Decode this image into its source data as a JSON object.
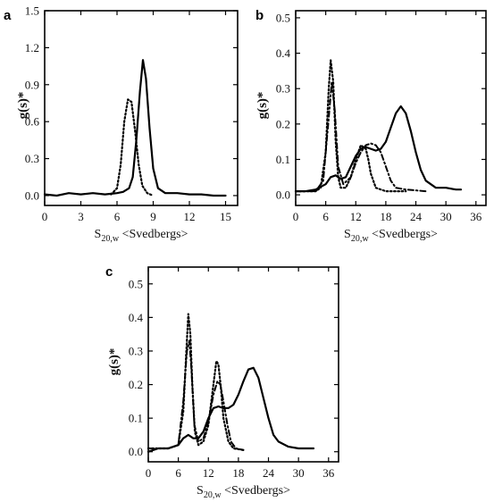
{
  "figure": {
    "panel_letters": [
      "a",
      "b",
      "c"
    ]
  },
  "chart_data": [
    {
      "type": "line",
      "panel": "a",
      "ylabel": "g(s)*",
      "xlabel": {
        "main": "S",
        "sub": "20,w",
        "rest": " <Svedbergs>"
      },
      "xlim": [
        0,
        16
      ],
      "ylim": [
        -0.08,
        1.5
      ],
      "x_ticks": [
        0,
        3,
        6,
        9,
        12,
        15
      ],
      "y_ticks": [
        0.0,
        0.3,
        0.6,
        0.9,
        1.2,
        1.5
      ],
      "y_tick_labels": [
        "0.0",
        "0.3",
        "0.6",
        "0.9",
        "1.2",
        "1.5"
      ],
      "series": [
        {
          "style": "solid",
          "points": [
            [
              0.0,
              0.01
            ],
            [
              1.0,
              0.0
            ],
            [
              2.0,
              0.02
            ],
            [
              3.0,
              0.01
            ],
            [
              4.0,
              0.02
            ],
            [
              5.0,
              0.01
            ],
            [
              6.0,
              0.02
            ],
            [
              6.5,
              0.03
            ],
            [
              7.0,
              0.06
            ],
            [
              7.3,
              0.15
            ],
            [
              7.6,
              0.45
            ],
            [
              7.9,
              0.85
            ],
            [
              8.15,
              1.1
            ],
            [
              8.4,
              0.95
            ],
            [
              8.7,
              0.55
            ],
            [
              9.0,
              0.22
            ],
            [
              9.4,
              0.06
            ],
            [
              10.0,
              0.02
            ],
            [
              11.0,
              0.02
            ],
            [
              12.0,
              0.01
            ],
            [
              13.0,
              0.01
            ],
            [
              14.0,
              0.0
            ],
            [
              15.0,
              0.0
            ]
          ]
        },
        {
          "style": "dotted",
          "points": [
            [
              5.5,
              0.01
            ],
            [
              6.0,
              0.06
            ],
            [
              6.3,
              0.25
            ],
            [
              6.6,
              0.6
            ],
            [
              6.9,
              0.78
            ],
            [
              7.2,
              0.76
            ],
            [
              7.5,
              0.52
            ],
            [
              7.8,
              0.25
            ],
            [
              8.1,
              0.08
            ],
            [
              8.5,
              0.02
            ],
            [
              9.0,
              0.0
            ]
          ]
        }
      ]
    },
    {
      "type": "line",
      "panel": "b",
      "ylabel": "g(s)*",
      "xlabel": {
        "main": "S",
        "sub": "20,w",
        "rest": " <Svedbergs>"
      },
      "xlim": [
        0,
        38
      ],
      "ylim": [
        -0.03,
        0.52
      ],
      "x_ticks": [
        0,
        6,
        12,
        18,
        24,
        30,
        36
      ],
      "y_ticks": [
        0.0,
        0.1,
        0.2,
        0.3,
        0.4,
        0.5
      ],
      "y_tick_labels": [
        "0.0",
        "0.1",
        "0.2",
        "0.3",
        "0.4",
        "0.5"
      ],
      "series": [
        {
          "style": "solid",
          "points": [
            [
              0,
              0.01
            ],
            [
              2,
              0.01
            ],
            [
              4,
              0.015
            ],
            [
              6,
              0.03
            ],
            [
              7,
              0.05
            ],
            [
              8,
              0.055
            ],
            [
              9,
              0.045
            ],
            [
              10,
              0.05
            ],
            [
              11,
              0.08
            ],
            [
              12,
              0.11
            ],
            [
              13,
              0.13
            ],
            [
              14,
              0.135
            ],
            [
              15,
              0.13
            ],
            [
              16,
              0.125
            ],
            [
              17,
              0.13
            ],
            [
              18,
              0.15
            ],
            [
              19,
              0.19
            ],
            [
              20,
              0.23
            ],
            [
              21,
              0.25
            ],
            [
              22,
              0.23
            ],
            [
              23,
              0.18
            ],
            [
              24,
              0.12
            ],
            [
              25,
              0.07
            ],
            [
              26,
              0.04
            ],
            [
              28,
              0.02
            ],
            [
              30,
              0.02
            ],
            [
              32,
              0.015
            ],
            [
              33,
              0.015
            ]
          ]
        },
        {
          "style": "dotted",
          "points": [
            [
              0,
              0.01
            ],
            [
              4,
              0.01
            ],
            [
              5,
              0.02
            ],
            [
              6,
              0.12
            ],
            [
              6.6,
              0.3
            ],
            [
              7,
              0.38
            ],
            [
              7.5,
              0.32
            ],
            [
              8,
              0.15
            ],
            [
              8.5,
              0.05
            ],
            [
              9,
              0.02
            ],
            [
              10,
              0.02
            ],
            [
              11,
              0.05
            ],
            [
              12,
              0.1
            ],
            [
              13,
              0.14
            ],
            [
              14,
              0.13
            ],
            [
              14.5,
              0.1
            ],
            [
              15,
              0.06
            ],
            [
              16,
              0.02
            ],
            [
              18,
              0.01
            ],
            [
              22,
              0.01
            ]
          ]
        },
        {
          "style": "dashdot",
          "points": [
            [
              0,
              0.01
            ],
            [
              4,
              0.01
            ],
            [
              5.5,
              0.04
            ],
            [
              6.5,
              0.2
            ],
            [
              7.2,
              0.32
            ],
            [
              7.8,
              0.24
            ],
            [
              8.5,
              0.08
            ],
            [
              9.5,
              0.03
            ],
            [
              11,
              0.05
            ],
            [
              12,
              0.09
            ],
            [
              13,
              0.12
            ],
            [
              14,
              0.14
            ],
            [
              15,
              0.145
            ],
            [
              16,
              0.14
            ],
            [
              17,
              0.12
            ],
            [
              18,
              0.08
            ],
            [
              19,
              0.04
            ],
            [
              20,
              0.02
            ],
            [
              22,
              0.015
            ],
            [
              26,
              0.01
            ]
          ]
        }
      ]
    },
    {
      "type": "line",
      "panel": "c",
      "ylabel": "g(s)*",
      "xlabel": {
        "main": "S",
        "sub": "20,w",
        "rest": " <Svedbergs>"
      },
      "xlim": [
        0,
        38
      ],
      "ylim": [
        -0.03,
        0.55
      ],
      "x_ticks": [
        0,
        6,
        12,
        18,
        24,
        30,
        36
      ],
      "y_ticks": [
        0.0,
        0.1,
        0.2,
        0.3,
        0.4,
        0.5
      ],
      "y_tick_labels": [
        "0.0",
        "0.1",
        "0.2",
        "0.3",
        "0.4",
        "0.5"
      ],
      "series": [
        {
          "style": "solid",
          "points": [
            [
              0,
              0.0
            ],
            [
              2,
              0.01
            ],
            [
              4,
              0.01
            ],
            [
              6,
              0.02
            ],
            [
              7,
              0.04
            ],
            [
              8,
              0.05
            ],
            [
              9,
              0.04
            ],
            [
              10,
              0.04
            ],
            [
              11,
              0.06
            ],
            [
              12,
              0.1
            ],
            [
              13,
              0.13
            ],
            [
              14,
              0.135
            ],
            [
              15,
              0.13
            ],
            [
              16,
              0.13
            ],
            [
              17,
              0.14
            ],
            [
              18,
              0.17
            ],
            [
              19,
              0.21
            ],
            [
              20,
              0.245
            ],
            [
              21,
              0.25
            ],
            [
              22,
              0.22
            ],
            [
              23,
              0.16
            ],
            [
              24,
              0.1
            ],
            [
              25,
              0.05
            ],
            [
              26,
              0.03
            ],
            [
              28,
              0.015
            ],
            [
              30,
              0.01
            ],
            [
              33,
              0.01
            ]
          ]
        },
        {
          "style": "dotted",
          "points": [
            [
              0,
              0.01
            ],
            [
              4,
              0.01
            ],
            [
              6,
              0.02
            ],
            [
              7,
              0.12
            ],
            [
              7.6,
              0.3
            ],
            [
              8,
              0.41
            ],
            [
              8.4,
              0.35
            ],
            [
              8.8,
              0.2
            ],
            [
              9.3,
              0.06
            ],
            [
              10,
              0.02
            ],
            [
              11,
              0.03
            ],
            [
              12,
              0.08
            ],
            [
              13,
              0.2
            ],
            [
              13.6,
              0.27
            ],
            [
              14,
              0.26
            ],
            [
              14.5,
              0.19
            ],
            [
              15,
              0.1
            ],
            [
              16,
              0.03
            ],
            [
              17,
              0.01
            ],
            [
              19,
              0.005
            ]
          ]
        },
        {
          "style": "dashdot",
          "points": [
            [
              0,
              0.01
            ],
            [
              4,
              0.01
            ],
            [
              6,
              0.02
            ],
            [
              7,
              0.15
            ],
            [
              7.7,
              0.3
            ],
            [
              8.2,
              0.33
            ],
            [
              8.6,
              0.25
            ],
            [
              9.2,
              0.08
            ],
            [
              10,
              0.03
            ],
            [
              11,
              0.04
            ],
            [
              12,
              0.09
            ],
            [
              13,
              0.17
            ],
            [
              13.8,
              0.21
            ],
            [
              14.4,
              0.2
            ],
            [
              15,
              0.15
            ],
            [
              15.8,
              0.08
            ],
            [
              16.5,
              0.03
            ],
            [
              17.5,
              0.01
            ],
            [
              19,
              0.005
            ]
          ]
        }
      ]
    }
  ]
}
